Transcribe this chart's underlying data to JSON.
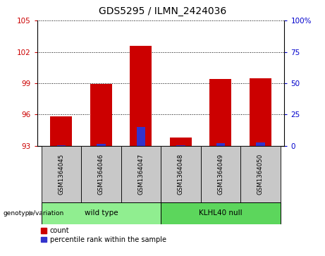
{
  "title": "GDS5295 / ILMN_2424036",
  "samples": [
    "GSM1364045",
    "GSM1364046",
    "GSM1364047",
    "GSM1364048",
    "GSM1364049",
    "GSM1364050"
  ],
  "groups": [
    "wild type",
    "wild type",
    "wild type",
    "KLHL40 null",
    "KLHL40 null",
    "KLHL40 null"
  ],
  "group_labels": [
    "wild type",
    "KLHL40 null"
  ],
  "red_values": [
    95.8,
    98.9,
    102.6,
    93.8,
    99.4,
    99.5
  ],
  "blue_values": [
    0.5,
    1.5,
    15.0,
    0.3,
    2.0,
    3.0
  ],
  "ymin": 93,
  "ymax": 105,
  "yticks": [
    93,
    96,
    99,
    102,
    105
  ],
  "y2min": 0,
  "y2max": 100,
  "y2ticks": [
    0,
    25,
    50,
    75,
    100
  ],
  "bar_color": "#CC0000",
  "blue_color": "#3333CC",
  "left_tick_color": "#CC0000",
  "right_tick_color": "#0000CC",
  "sample_bg_color": "#C8C8C8",
  "wt_color": "#90EE90",
  "kl_color": "#5CD65C",
  "legend_red": "count",
  "legend_blue": "percentile rank within the sample",
  "group_row_label": "genotype/variation"
}
